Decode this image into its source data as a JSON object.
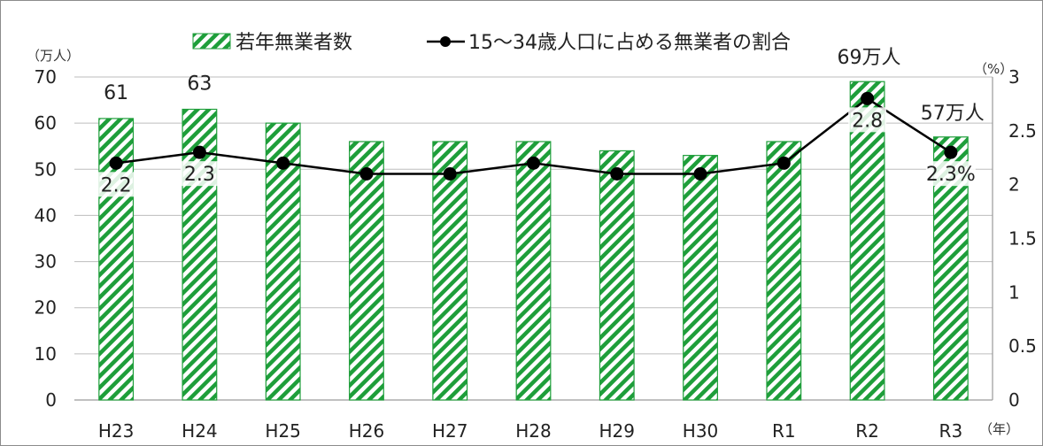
{
  "chart_data": {
    "type": "bar",
    "categories": [
      "H23",
      "H24",
      "H25",
      "H26",
      "H27",
      "H28",
      "H29",
      "H30",
      "R1",
      "R2",
      "R3"
    ],
    "series": [
      {
        "name": "若年無業者数",
        "type": "bar",
        "axis": "left",
        "values": [
          61,
          63,
          60,
          56,
          56,
          56,
          54,
          53,
          56,
          69,
          57
        ],
        "color": "#1e9e3a"
      },
      {
        "name": "15～34歳人口に占める無業者の割合",
        "type": "line",
        "axis": "right",
        "values": [
          2.2,
          2.3,
          2.2,
          2.1,
          2.1,
          2.2,
          2.1,
          2.1,
          2.2,
          2.8,
          2.3
        ],
        "color": "#000000"
      }
    ],
    "y_left": {
      "unit": "（万人）",
      "min": 0,
      "max": 70,
      "ticks": [
        "0",
        "10",
        "20",
        "30",
        "40",
        "50",
        "60",
        "70"
      ]
    },
    "y_right": {
      "unit": "（%）",
      "min": 0,
      "max": 3,
      "ticks": [
        "0",
        "0.5",
        "1",
        "1.5",
        "2",
        "2.5",
        "3"
      ]
    },
    "x_unit": "（年）",
    "bar_labels": [
      {
        "index": 0,
        "text": "61"
      },
      {
        "index": 1,
        "text": "63"
      },
      {
        "index": 9,
        "text": "69万人"
      },
      {
        "index": 10,
        "text": "57万人"
      }
    ],
    "line_labels": [
      {
        "index": 0,
        "text": "2.2"
      },
      {
        "index": 1,
        "text": "2.3"
      },
      {
        "index": 9,
        "text": "2.8"
      },
      {
        "index": 10,
        "text": "2.3%"
      }
    ],
    "grid": true,
    "legend": "top"
  }
}
